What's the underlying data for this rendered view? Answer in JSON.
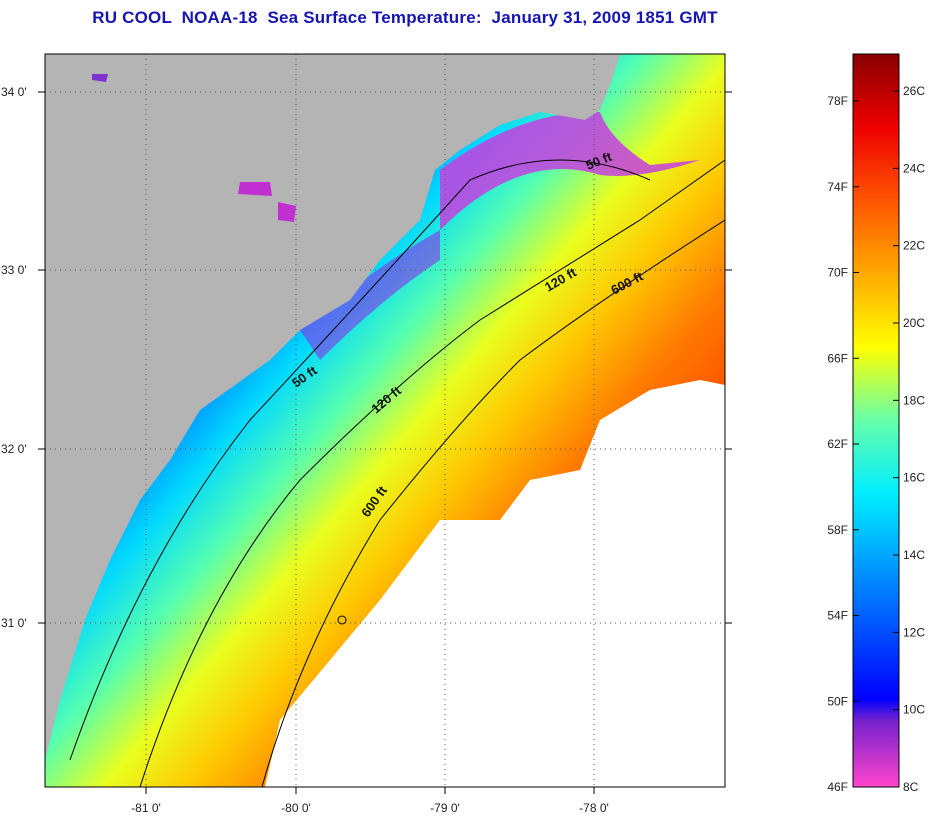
{
  "title": "RU COOL  NOAA-18  Sea Surface Temperature:  January 31, 2009 1851 GMT",
  "lat_labels": [
    "34 0'",
    "33 0'",
    "32 0'",
    "31 0'"
  ],
  "lon_labels": [
    "-81 0'",
    "-80 0'",
    "-79 0'",
    "-78 0'"
  ],
  "contour_labels": [
    "50 ft",
    "50 ft",
    "120 ft",
    "120 ft",
    "600 ft",
    "600 ft"
  ],
  "colorbar": {
    "fahrenheit": [
      "78F",
      "74F",
      "70F",
      "66F",
      "62F",
      "58F",
      "54F",
      "50F",
      "46F"
    ],
    "celsius": [
      "26C",
      "24C",
      "22C",
      "20C",
      "18C",
      "16C",
      "14C",
      "12C",
      "10C",
      "8C"
    ],
    "colors": [
      "#ff44cc",
      "#7722cc",
      "#0000ff",
      "#0088ff",
      "#00eeff",
      "#66ffaa",
      "#ffff00",
      "#ffaa00",
      "#ff5500",
      "#ee0000",
      "#880000"
    ]
  },
  "colors": {
    "land": "#b4b4b4",
    "no_data": "#ffffff",
    "title": "#1515b0"
  }
}
